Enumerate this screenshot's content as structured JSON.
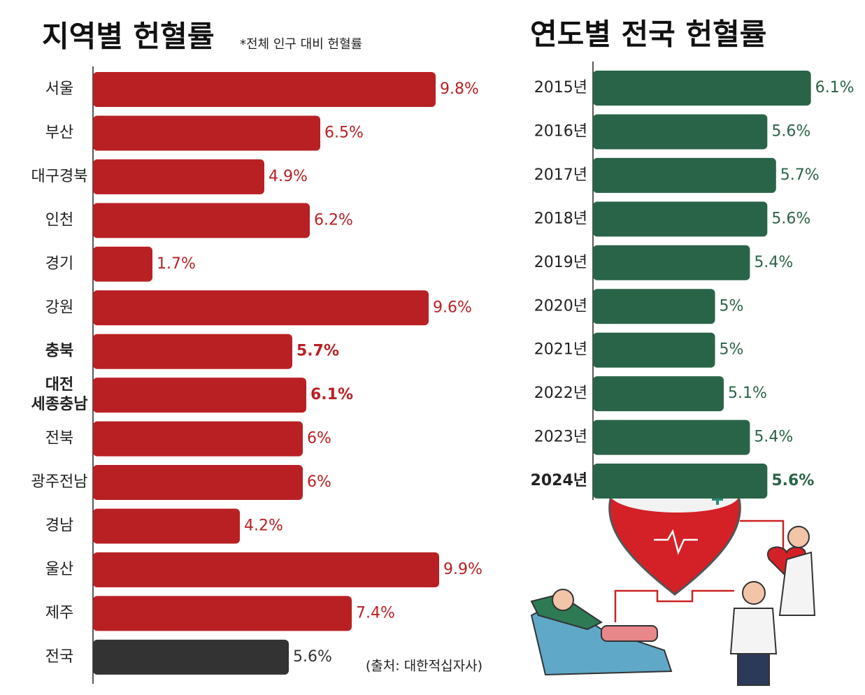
{
  "chart_data": [
    {
      "type": "bar",
      "orientation": "horizontal",
      "title": "지역별 헌혈률",
      "subtitle": "*전체 인구 대비 헌혈률",
      "categories": [
        "서울",
        "부산",
        "대구경북",
        "인천",
        "경기",
        "강원",
        "충북",
        "대전\n세종충남",
        "전북",
        "광주전남",
        "경남",
        "울산",
        "제주",
        "전국"
      ],
      "values": [
        9.8,
        6.5,
        4.9,
        6.2,
        1.7,
        9.6,
        5.7,
        6.1,
        6,
        6,
        4.2,
        9.9,
        7.4,
        5.6
      ],
      "value_labels": [
        "9.8%",
        "6.5%",
        "4.9%",
        "6.2%",
        "1.7%",
        "9.6%",
        "5.7%",
        "6.1%",
        "6%",
        "6%",
        "4.2%",
        "9.9%",
        "7.4%",
        "5.6%"
      ],
      "colors": [
        "#b92024",
        "#b92024",
        "#b92024",
        "#b92024",
        "#b92024",
        "#b92024",
        "#b92024",
        "#b92024",
        "#b92024",
        "#b92024",
        "#b92024",
        "#b92024",
        "#b92024",
        "#333333"
      ],
      "bold_indices": [
        6,
        7
      ],
      "xlim": [
        0,
        11
      ],
      "source": "(출처: 대한적십자사)"
    },
    {
      "type": "bar",
      "orientation": "horizontal",
      "title": "연도별 전국 헌혈률",
      "categories": [
        "2015년",
        "2016년",
        "2017년",
        "2018년",
        "2019년",
        "2020년",
        "2021년",
        "2022년",
        "2023년",
        "2024년"
      ],
      "values": [
        6.1,
        5.6,
        5.7,
        5.6,
        5.4,
        5,
        5,
        5.1,
        5.4,
        5.6
      ],
      "value_labels": [
        "6.1%",
        "5.6%",
        "5.7%",
        "5.6%",
        "5.4%",
        "5%",
        "5%",
        "5.1%",
        "5.4%",
        "5.6%"
      ],
      "color": "#2a6448",
      "bold_indices": [
        9
      ],
      "xlim": [
        3.6,
        6.6
      ]
    }
  ]
}
